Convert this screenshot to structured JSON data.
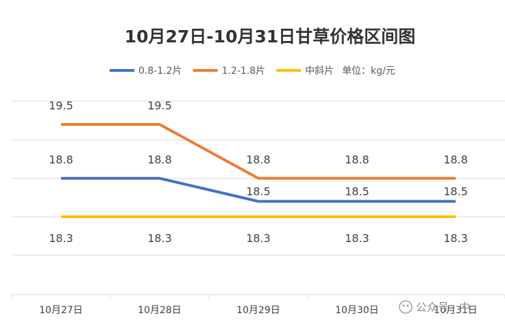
{
  "chart_data": {
    "type": "line",
    "title": "10月27日-10月31日甘草价格区间图",
    "unit_note": "单位：kg/元",
    "categories": [
      "10月27日",
      "10月28日",
      "10月29日",
      "10月30日",
      "10月31日"
    ],
    "series": [
      {
        "name": "0.8-1.2片",
        "color": "#4472C4",
        "values": [
          18.8,
          18.8,
          18.5,
          18.5,
          18.5
        ]
      },
      {
        "name": "1.2-1.8片",
        "color": "#ED7D31",
        "values": [
          19.5,
          19.5,
          18.8,
          18.8,
          18.8
        ]
      },
      {
        "name": "中斜片",
        "color": "#FFC000",
        "values": [
          18.3,
          18.3,
          18.3,
          18.3,
          18.3
        ]
      }
    ],
    "grid": true,
    "legend_position": "top"
  },
  "watermark": "公众号 · 中"
}
